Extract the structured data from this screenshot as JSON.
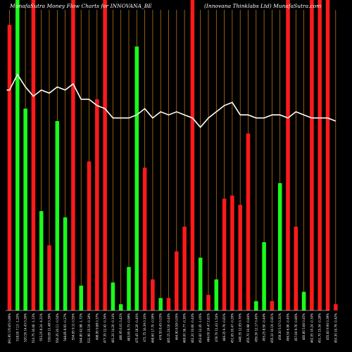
{
  "header": {
    "title_left": "MunafaSutra  Money Flow  Charts for INNOVANA_BE",
    "title_right": "(Innovana  Thinklabs Ltd) MunafaSutra.com"
  },
  "chart_data": {
    "type": "bar",
    "title": "MunafaSutra  Money Flow  Charts for INNOVANA_BE",
    "subtitle": "(Innovana  Thinklabs Ltd) MunafaSutra.com",
    "categories": [
      "491.95 170.65 0.89%",
      "518.00 7.13 -1.20%",
      "520.55 14.43 0.26%",
      "510.75 30.06 -1.13%",
      "553.25 8.24 -4.21%",
      "539.85 11.48 0.39%",
      "550.35 20.11 -0.54%",
      "548.85 8.93 -0.27%",
      "554.95 9.11 0.55%",
      "544.80 42.98 -1.72%",
      "531.90 15.19 -0.18%",
      "498.95 9.88 0.37%",
      "477.35 12.42 -0.34%",
      "481.20 14.20 -0.14%",
      "480.95 6.01 0.42%",
      "483.95 9.73 -0.98%",
      "475.45 18.20 -0.40%",
      "471.75 16.39 0.10%",
      "468.60 17.70 -0.59%",
      "474.55 8.45 0.03%",
      "465.15 24.16 -0.44%",
      "464.90 8.59 0.05%",
      "469.00 36.77 -0.30%",
      "462.20 10.60 -0.44%",
      "453.60 12.45 -1.05%",
      "464.00 24.47 2.61%",
      "478.70 11.43 1.54%",
      "466.35 9.79 -0.61%",
      "451.65 20.47 -0.29%",
      "448.35 12.95 0.70%",
      "455.70 10.98 -0.84%",
      "459.30 12.17 0.40%",
      "455.25 8.50 -0.44%",
      "455.10 10.19 -0.81%",
      "459.30 5.57 0.31%",
      "456.50 6.06 -0.45%",
      "457.60 9.76 -0.80%",
      "460.80 5.66 0.45%",
      "462.05 10.24 -0.34%",
      "451.70 15.34 -0.28%",
      "455.60 9.90 0.39%",
      "453.30 10.79 -0.42%"
    ],
    "series": [
      {
        "values": [
          92,
          100,
          65,
          100,
          32,
          21,
          61,
          30,
          100,
          8,
          48,
          68,
          100,
          9,
          2,
          14,
          85,
          46,
          10,
          4,
          4,
          19,
          27,
          100,
          17,
          5,
          10,
          36,
          37,
          34,
          57,
          3,
          22,
          3,
          41,
          100,
          27,
          6,
          100,
          100,
          100,
          2
        ]
      },
      {
        "values": [
          71,
          76,
          72,
          69,
          71,
          70,
          72,
          71,
          73,
          68,
          68,
          66,
          65,
          62,
          62,
          62,
          63,
          65,
          62,
          64,
          63,
          64,
          63,
          62,
          59,
          62,
          64,
          66,
          67,
          63,
          63,
          62,
          62,
          63,
          63,
          62,
          64,
          63,
          62,
          62,
          62,
          61
        ]
      }
    ],
    "bar_colors": [
      "red",
      "green",
      "green",
      "red",
      "green",
      "red",
      "green",
      "green",
      "red",
      "green",
      "red",
      "red",
      "red",
      "green",
      "green",
      "green",
      "green",
      "red",
      "red",
      "green",
      "red",
      "red",
      "red",
      "red",
      "green",
      "red",
      "green",
      "red",
      "red",
      "red",
      "red",
      "green",
      "green",
      "red",
      "green",
      "red",
      "red",
      "green",
      "red",
      "red",
      "red",
      "red"
    ],
    "ylim": [
      0,
      100
    ],
    "grid": true
  },
  "colors": {
    "background": "#000000",
    "red": "#ff1a1a",
    "green": "#1aff1a",
    "line": "#ffffff",
    "gridline": "#d4821a",
    "text": "#ffffff"
  }
}
